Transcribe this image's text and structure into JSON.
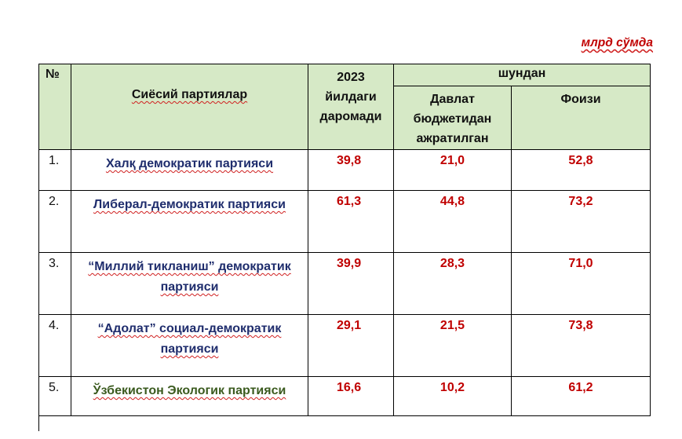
{
  "unit_label": "млрд сўмда",
  "headers": {
    "number": "№",
    "party": "Сиёсий партиялар",
    "revenue": "2023 йилдаги даромади",
    "of_which": "шундан",
    "state_budget": "Давлат бюджетидан ажратилган",
    "percent": "Фоизи"
  },
  "rows": [
    {
      "num": "1.",
      "party": "Халқ демократик партияси",
      "revenue": "39,8",
      "state_budget": "21,0",
      "percent": "52,8"
    },
    {
      "num": "2.",
      "party": "Либерал-демократик партияси",
      "revenue": "61,3",
      "state_budget": "44,8",
      "percent": "73,2"
    },
    {
      "num": "3.",
      "party": "“Миллий тикланиш” демократик партияси",
      "revenue": "39,9",
      "state_budget": "28,3",
      "percent": "71,0"
    },
    {
      "num": "4.",
      "party": "“Адолат” социал-демократик партияси",
      "revenue": "29,1",
      "state_budget": "21,5",
      "percent": "73,8"
    },
    {
      "num": "5.",
      "party": "Ўзбекистон Экологик партияси",
      "revenue": "16,6",
      "state_budget": "10,2",
      "percent": "61,2"
    }
  ]
}
